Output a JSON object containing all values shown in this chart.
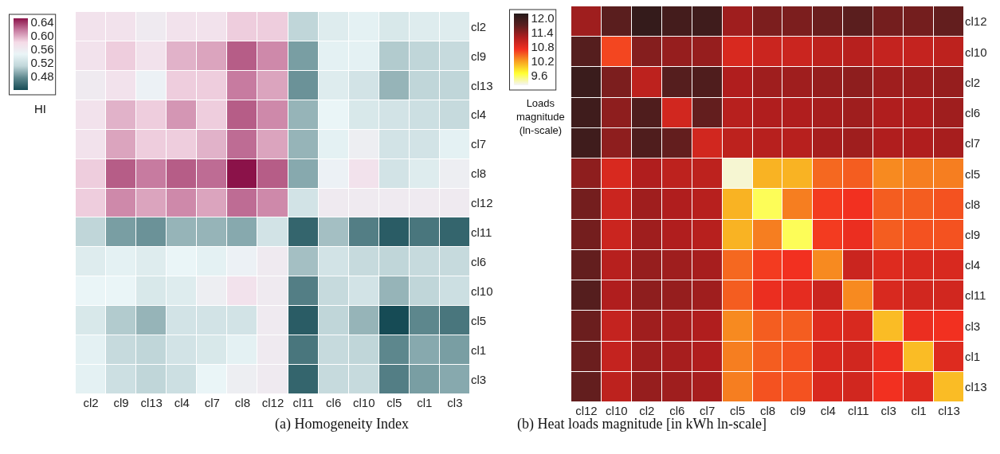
{
  "chart_data": [
    {
      "type": "heatmap",
      "title": "(a) Homogeneity Index",
      "clabel": "HI",
      "categories": [
        "cl2",
        "cl9",
        "cl13",
        "cl4",
        "cl7",
        "cl8",
        "cl12",
        "cl11",
        "cl6",
        "cl10",
        "cl5",
        "cl1",
        "cl3"
      ],
      "y_categories": [
        "cl2",
        "cl9",
        "cl13",
        "cl4",
        "cl7",
        "cl8",
        "cl12",
        "cl11",
        "cl6",
        "cl10",
        "cl5",
        "cl1",
        "cl3"
      ],
      "cells": [
        [
          0.57,
          0.57,
          0.56,
          0.57,
          0.57,
          0.585,
          0.585,
          0.51,
          0.535,
          0.54,
          0.53,
          0.535,
          0.535
        ],
        [
          0.57,
          0.585,
          0.57,
          0.595,
          0.6,
          0.625,
          0.61,
          0.485,
          0.54,
          0.54,
          0.505,
          0.51,
          0.515
        ],
        [
          0.56,
          0.57,
          0.55,
          0.585,
          0.585,
          0.615,
          0.6,
          0.48,
          0.535,
          0.525,
          0.495,
          0.51,
          0.51
        ],
        [
          0.57,
          0.595,
          0.585,
          0.605,
          0.585,
          0.625,
          0.61,
          0.495,
          0.545,
          0.53,
          0.525,
          0.52,
          0.515
        ],
        [
          0.57,
          0.6,
          0.585,
          0.585,
          0.595,
          0.62,
          0.6,
          0.495,
          0.54,
          0.555,
          0.525,
          0.525,
          0.54
        ],
        [
          0.585,
          0.625,
          0.615,
          0.625,
          0.62,
          0.65,
          0.625,
          0.49,
          0.55,
          0.57,
          0.525,
          0.535,
          0.555
        ],
        [
          0.585,
          0.61,
          0.6,
          0.61,
          0.6,
          0.62,
          0.61,
          0.525,
          0.56,
          0.56,
          0.56,
          0.56,
          0.56
        ],
        [
          0.51,
          0.485,
          0.48,
          0.495,
          0.495,
          0.49,
          0.525,
          0.455,
          0.5,
          0.47,
          0.45,
          0.465,
          0.455
        ],
        [
          0.535,
          0.54,
          0.535,
          0.545,
          0.54,
          0.55,
          0.56,
          0.5,
          0.525,
          0.515,
          0.51,
          0.515,
          0.515
        ],
        [
          0.545,
          0.545,
          0.53,
          0.535,
          0.555,
          0.57,
          0.56,
          0.47,
          0.515,
          0.525,
          0.495,
          0.51,
          0.52
        ],
        [
          0.53,
          0.505,
          0.495,
          0.525,
          0.525,
          0.525,
          0.56,
          0.45,
          0.51,
          0.495,
          0.44,
          0.475,
          0.465
        ],
        [
          0.54,
          0.515,
          0.51,
          0.525,
          0.53,
          0.54,
          0.56,
          0.465,
          0.515,
          0.51,
          0.475,
          0.49,
          0.485
        ],
        [
          0.54,
          0.52,
          0.51,
          0.52,
          0.545,
          0.555,
          0.56,
          0.455,
          0.515,
          0.515,
          0.47,
          0.485,
          0.49
        ]
      ],
      "colors": [
        "#164b55",
        "#5d878d",
        "#c0d6d9",
        "#eaf5f7",
        "#f5dbe7",
        "#c77ba0",
        "#8b1249"
      ],
      "clim": [
        0.44,
        0.65
      ],
      "cticks": [
        {
          "value": 0.48,
          "label": "0.48"
        },
        {
          "value": 0.52,
          "label": "0.52"
        },
        {
          "value": 0.56,
          "label": "0.56"
        },
        {
          "value": 0.6,
          "label": "0.60"
        },
        {
          "value": 0.64,
          "label": "0.64"
        }
      ]
    },
    {
      "type": "heatmap",
      "title": "(b) Heat loads magnitude [in kWh ln-scale]",
      "clabel": "Loads magnitude (ln-scale)",
      "categories": [
        "cl12",
        "cl10",
        "cl2",
        "cl6",
        "cl7",
        "cl5",
        "cl8",
        "cl9",
        "cl4",
        "cl11",
        "cl3",
        "cl1",
        "cl13"
      ],
      "y_categories": [
        "cl12",
        "cl10",
        "cl2",
        "cl6",
        "cl7",
        "cl5",
        "cl8",
        "cl9",
        "cl4",
        "cl11",
        "cl3",
        "cl1",
        "cl13"
      ],
      "cells": [
        [
          11.3,
          11.7,
          12.05,
          11.9,
          11.95,
          11.3,
          11.5,
          11.5,
          11.6,
          11.7,
          11.55,
          11.55,
          11.65
        ],
        [
          11.75,
          10.6,
          11.45,
          11.35,
          11.35,
          10.9,
          11.0,
          11.0,
          11.1,
          11.15,
          11.05,
          11.05,
          11.1
        ],
        [
          12.0,
          11.5,
          11.1,
          11.75,
          11.8,
          11.2,
          11.3,
          11.3,
          11.35,
          11.4,
          11.3,
          11.3,
          11.35
        ],
        [
          11.95,
          11.4,
          11.8,
          10.95,
          11.65,
          11.15,
          11.2,
          11.2,
          11.25,
          11.3,
          11.2,
          11.2,
          11.3
        ],
        [
          11.95,
          11.4,
          11.8,
          11.65,
          10.95,
          11.1,
          11.15,
          11.15,
          11.25,
          11.3,
          11.2,
          11.2,
          11.25
        ],
        [
          11.4,
          10.9,
          11.2,
          11.1,
          11.1,
          9.3,
          10.1,
          10.1,
          10.45,
          10.5,
          10.3,
          10.35,
          10.35
        ],
        [
          11.55,
          11.0,
          11.3,
          11.2,
          11.15,
          10.1,
          9.6,
          10.35,
          10.65,
          10.7,
          10.5,
          10.5,
          10.55
        ],
        [
          11.55,
          11.0,
          11.3,
          11.2,
          11.15,
          10.1,
          10.35,
          9.6,
          10.65,
          10.75,
          10.5,
          10.55,
          10.55
        ],
        [
          11.65,
          11.15,
          11.35,
          11.3,
          11.25,
          10.45,
          10.65,
          10.7,
          10.3,
          11.0,
          10.85,
          10.9,
          10.9
        ],
        [
          11.75,
          11.2,
          11.4,
          11.35,
          11.3,
          10.5,
          10.75,
          10.8,
          11.0,
          10.3,
          10.9,
          10.95,
          10.95
        ],
        [
          11.6,
          11.05,
          11.3,
          11.25,
          11.2,
          10.3,
          10.5,
          10.5,
          10.85,
          10.9,
          10.05,
          10.75,
          10.7
        ],
        [
          11.6,
          11.05,
          11.3,
          11.25,
          11.2,
          10.35,
          10.5,
          10.55,
          10.9,
          10.95,
          10.75,
          10.05,
          10.85
        ],
        [
          11.65,
          11.1,
          11.35,
          11.3,
          11.25,
          10.35,
          10.55,
          10.55,
          10.9,
          10.95,
          10.7,
          10.85,
          10.05
        ]
      ],
      "colors": [
        "#f4f4fa",
        "#ffff30",
        "#f8a020",
        "#f23020",
        "#b01e1e",
        "#5a1e1e",
        "#241a1a"
      ],
      "clim": [
        9.2,
        12.2
      ],
      "cticks": [
        9.6,
        10.2,
        10.8,
        11.4,
        {
          "value": 12,
          "label": "12.0"
        }
      ]
    }
  ]
}
